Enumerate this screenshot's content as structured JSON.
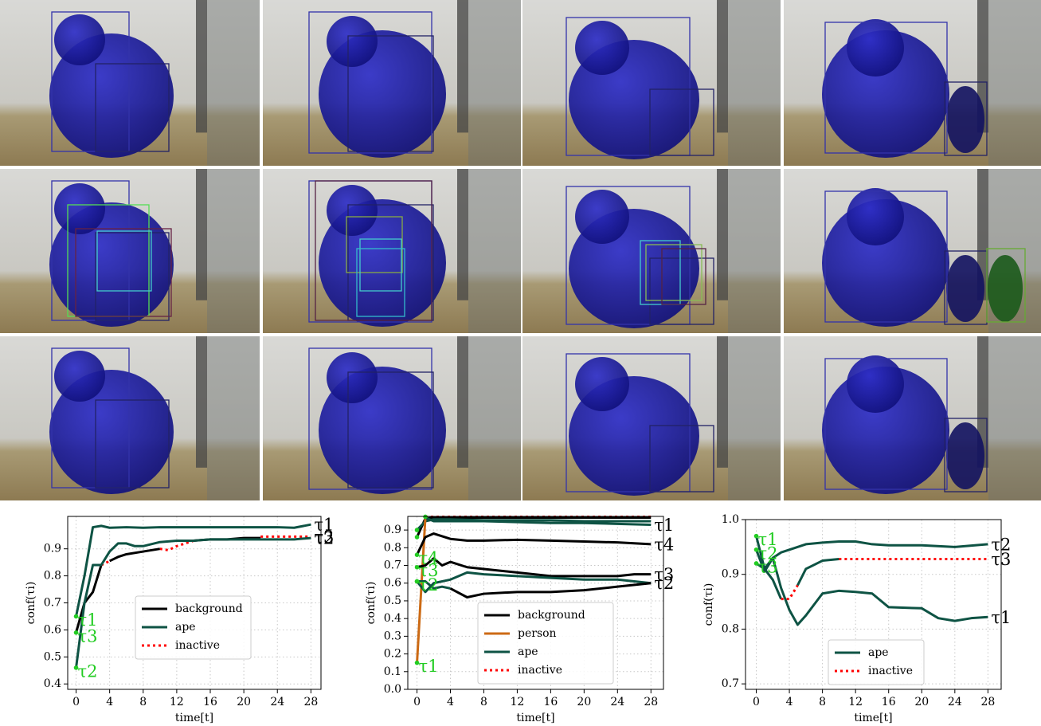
{
  "chart_data": [
    {
      "type": "line",
      "ylabel": "conf(τi)",
      "xlabel": "time[t]",
      "grid": true,
      "xlim": [
        -1,
        29.2
      ],
      "ylim": [
        0.38,
        1.02
      ],
      "xticks": [
        0,
        4,
        8,
        12,
        16,
        20,
        24,
        28
      ],
      "yticks": [
        0.4,
        0.5,
        0.6,
        0.7,
        0.8,
        0.9
      ],
      "legend": [
        {
          "name": "background",
          "color": "#000000",
          "linestyle": "solid"
        },
        {
          "name": "ape",
          "color": "#0e5344",
          "linestyle": "solid"
        },
        {
          "name": "inactive",
          "color": "#ff0000",
          "linestyle": "dotted"
        }
      ],
      "series": [
        {
          "label": "τ1",
          "segments": [
            {
              "name": "ape",
              "x": [
                0,
                1,
                2,
                3,
                4,
                6,
                8,
                10,
                12,
                14,
                16,
                18,
                20,
                22,
                24,
                26,
                28
              ],
              "values": [
                0.65,
                0.8,
                0.98,
                0.985,
                0.978,
                0.98,
                0.978,
                0.98,
                0.98,
                0.98,
                0.98,
                0.98,
                0.98,
                0.98,
                0.98,
                0.978,
                0.99
              ]
            }
          ]
        },
        {
          "label": "τ3",
          "segments": [
            {
              "name": "background",
              "x": [
                0,
                1,
                2,
                3
              ],
              "values": [
                0.59,
                0.7,
                0.74,
                0.84
              ]
            },
            {
              "name": "inactive",
              "x": [
                3,
                4
              ],
              "values": [
                0.84,
                0.855
              ]
            },
            {
              "name": "background",
              "x": [
                4,
                5,
                6,
                8,
                10
              ],
              "values": [
                0.855,
                0.87,
                0.88,
                0.89,
                0.9
              ]
            },
            {
              "name": "inactive",
              "x": [
                10,
                11,
                12,
                14
              ],
              "values": [
                0.9,
                0.895,
                0.91,
                0.93
              ]
            },
            {
              "name": "background",
              "x": [
                14,
                16,
                18,
                20,
                22
              ],
              "values": [
                0.93,
                0.935,
                0.935,
                0.94,
                0.94
              ]
            },
            {
              "name": "inactive",
              "x": [
                22,
                24,
                26,
                28
              ],
              "values": [
                0.945,
                0.945,
                0.945,
                0.945
              ]
            }
          ]
        },
        {
          "label": "τ2",
          "segments": [
            {
              "name": "ape",
              "x": [
                0,
                1,
                2,
                3,
                4,
                5,
                6,
                7,
                8,
                10,
                12,
                14,
                16,
                18,
                20,
                22,
                24,
                26,
                28
              ],
              "values": [
                0.46,
                0.7,
                0.84,
                0.84,
                0.89,
                0.92,
                0.92,
                0.91,
                0.91,
                0.925,
                0.93,
                0.93,
                0.935,
                0.935,
                0.935,
                0.935,
                0.935,
                0.935,
                0.94
              ]
            }
          ]
        }
      ]
    },
    {
      "type": "line",
      "ylabel": "conf(τi)",
      "xlabel": "time[t]",
      "grid": true,
      "xlim": [
        -1.1,
        29.5
      ],
      "ylim": [
        0,
        0.977
      ],
      "xticks": [
        0,
        4,
        8,
        12,
        16,
        20,
        24,
        28
      ],
      "yticks": [
        {
          "value": 0,
          "label": "0.0"
        },
        0.1,
        0.2,
        0.3,
        0.4,
        0.5,
        0.6,
        0.7,
        0.8,
        0.9
      ],
      "legend": [
        {
          "name": "background",
          "color": "#000000",
          "linestyle": "solid"
        },
        {
          "name": "person",
          "color": "#cc6a14",
          "linestyle": "solid"
        },
        {
          "name": "ape",
          "color": "#0e5344",
          "linestyle": "solid"
        },
        {
          "name": "inactive",
          "color": "#ff0000",
          "linestyle": "dotted"
        }
      ],
      "series": [
        {
          "segments": [
            {
              "name": "inactive",
              "x": [
                1,
                28
              ],
              "values": [
                0.975,
                0.975
              ]
            }
          ]
        },
        {
          "segments": [
            {
              "name": "background",
              "x": [
                0,
                1,
                2,
                4,
                8,
                12,
                16,
                20,
                24,
                28
              ],
              "values": [
                0.86,
                0.965,
                0.97,
                0.97,
                0.97,
                0.97,
                0.97,
                0.97,
                0.97,
                0.97
              ]
            }
          ]
        },
        {
          "segments": [
            {
              "name": "ape",
              "x": [
                0,
                1,
                2,
                4,
                8,
                12,
                16,
                20,
                24,
                28
              ],
              "values": [
                0.9,
                0.95,
                0.96,
                0.96,
                0.955,
                0.955,
                0.955,
                0.95,
                0.95,
                0.95
              ]
            }
          ]
        },
        {
          "label": "τ1",
          "segments": [
            {
              "name": "person",
              "x": [
                0,
                1
              ],
              "values": [
                0.15,
                0.97
              ]
            },
            {
              "name": "ape",
              "x": [
                1,
                2,
                4,
                8,
                12,
                16,
                20,
                24,
                28
              ],
              "values": [
                0.97,
                0.95,
                0.95,
                0.95,
                0.945,
                0.94,
                0.94,
                0.935,
                0.93
              ]
            }
          ]
        },
        {
          "label": "τ4",
          "segments": [
            {
              "name": "background",
              "x": [
                0,
                1,
                2,
                4,
                6,
                8,
                12,
                16,
                20,
                24,
                28
              ],
              "values": [
                0.76,
                0.86,
                0.88,
                0.85,
                0.84,
                0.84,
                0.845,
                0.84,
                0.835,
                0.83,
                0.82
              ]
            }
          ]
        },
        {
          "label": "τ3",
          "segments": [
            {
              "name": "background",
              "x": [
                0,
                1,
                2,
                3,
                4,
                6,
                8,
                12,
                16,
                20,
                24,
                26,
                28
              ],
              "values": [
                0.69,
                0.7,
                0.74,
                0.7,
                0.72,
                0.69,
                0.68,
                0.66,
                0.64,
                0.64,
                0.64,
                0.65,
                0.65
              ]
            }
          ]
        },
        {
          "segments": [
            {
              "name": "ape",
              "x": [
                0,
                1,
                2,
                4,
                6,
                8,
                12,
                16,
                20,
                24,
                28
              ],
              "values": [
                0.61,
                0.55,
                0.6,
                0.62,
                0.66,
                0.65,
                0.64,
                0.63,
                0.62,
                0.62,
                0.6
              ]
            }
          ]
        },
        {
          "label": "τ2",
          "segments": [
            {
              "name": "ape",
              "x": [
                0,
                1,
                2,
                3,
                4
              ],
              "values": [
                0.61,
                0.61,
                0.57,
                0.58,
                0.57
              ]
            },
            {
              "name": "background",
              "x": [
                4,
                6,
                8,
                12,
                16,
                20,
                24,
                28
              ],
              "values": [
                0.57,
                0.52,
                0.54,
                0.55,
                0.55,
                0.56,
                0.58,
                0.6
              ]
            }
          ]
        }
      ]
    },
    {
      "type": "line",
      "ylabel": "conf(τi)",
      "xlabel": "time[t]",
      "grid": true,
      "xlim": [
        -1.3,
        29.6
      ],
      "ylim": [
        0.69,
        1.0
      ],
      "xticks": [
        0,
        4,
        8,
        12,
        16,
        20,
        24,
        28
      ],
      "yticks": [
        0.7,
        0.8,
        0.9,
        {
          "value": 1,
          "label": "1.0"
        }
      ],
      "legend": [
        {
          "name": "ape",
          "color": "#0e5344",
          "linestyle": "solid"
        },
        {
          "name": "inactive",
          "color": "#ff0000",
          "linestyle": "dotted"
        }
      ],
      "series": [
        {
          "label": "τ1",
          "segments": [
            {
              "name": "ape",
              "x": [
                0,
                1,
                2,
                3,
                4,
                5,
                6,
                8,
                10,
                12,
                14,
                16,
                20,
                22,
                24,
                26,
                28
              ],
              "values": [
                0.97,
                0.91,
                0.93,
                0.875,
                0.835,
                0.808,
                0.825,
                0.865,
                0.87,
                0.868,
                0.865,
                0.84,
                0.838,
                0.82,
                0.815,
                0.82,
                0.822
              ]
            }
          ]
        },
        {
          "label": "τ2",
          "segments": [
            {
              "name": "ape",
              "x": [
                0,
                1,
                2,
                3,
                4,
                6,
                8,
                10,
                12,
                14,
                16,
                20,
                24,
                28
              ],
              "values": [
                0.945,
                0.905,
                0.93,
                0.94,
                0.945,
                0.955,
                0.958,
                0.96,
                0.96,
                0.955,
                0.953,
                0.953,
                0.95,
                0.955
              ]
            }
          ]
        },
        {
          "label": "τ3",
          "segments": [
            {
              "name": "ape",
              "x": [
                0,
                1,
                2,
                3
              ],
              "values": [
                0.92,
                0.91,
                0.89,
                0.855
              ]
            },
            {
              "name": "inactive",
              "x": [
                3,
                4,
                5
              ],
              "values": [
                0.855,
                0.855,
                0.88
              ]
            },
            {
              "name": "ape",
              "x": [
                5,
                6,
                8,
                10
              ],
              "values": [
                0.88,
                0.91,
                0.925,
                0.928
              ]
            },
            {
              "name": "inactive",
              "x": [
                10,
                28
              ],
              "values": [
                0.928,
                0.928
              ]
            }
          ]
        }
      ]
    }
  ]
}
